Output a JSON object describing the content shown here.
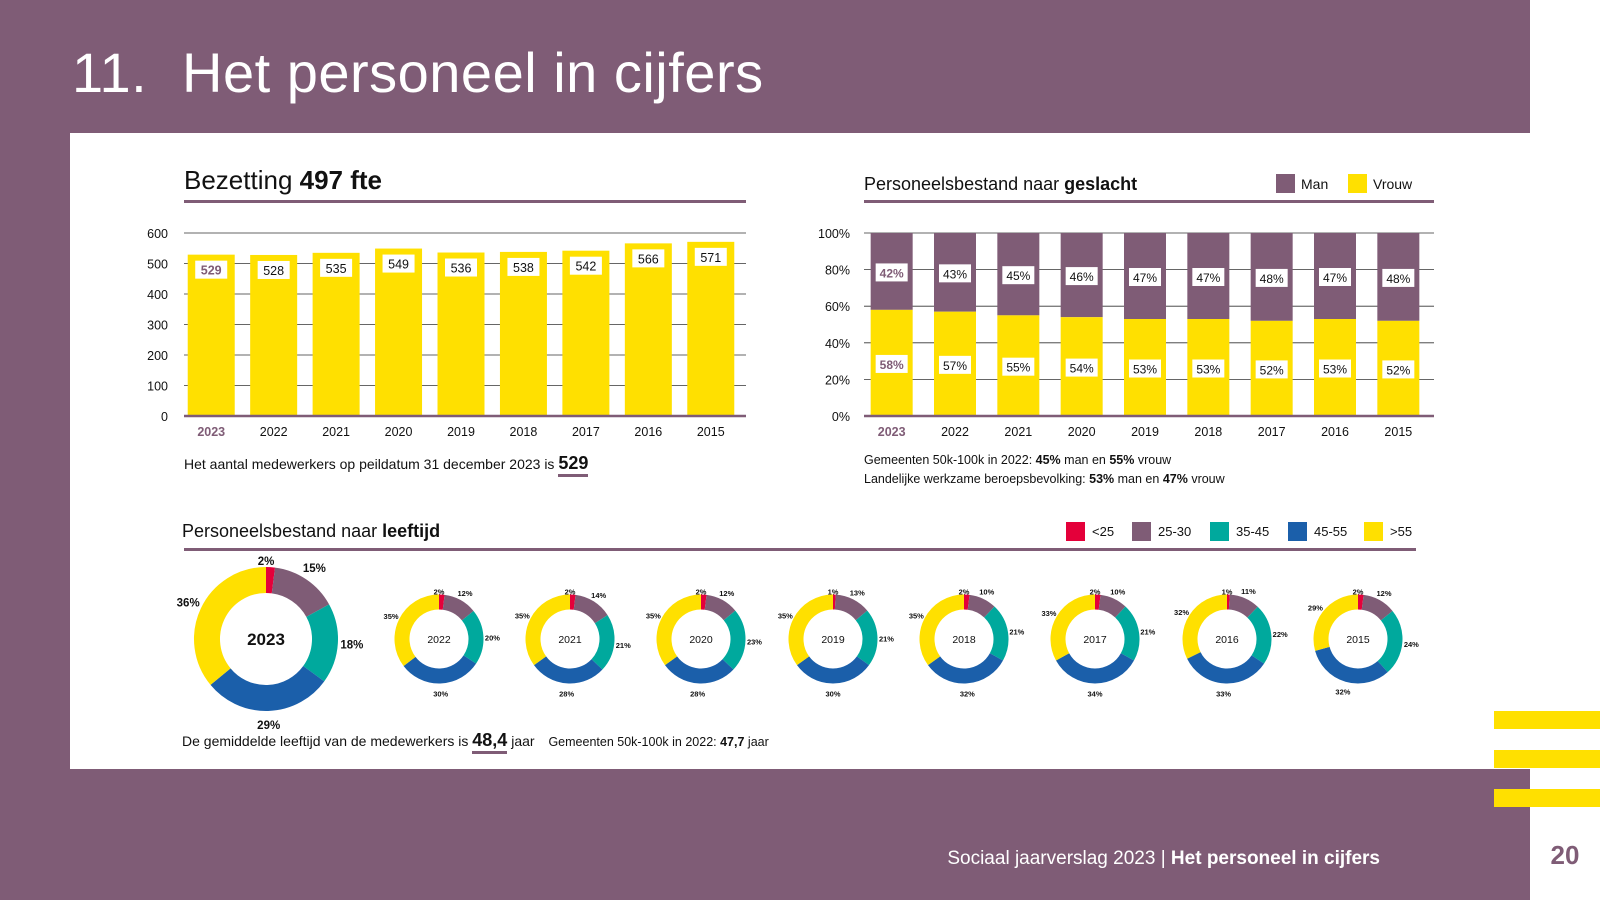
{
  "page": {
    "section_number": "11.",
    "section_title": "Het personeel in cijfers",
    "footer_text": "Sociaal jaarverslag 2023 | ",
    "footer_bold": "Het personeel in cijfers",
    "page_number": "20"
  },
  "colors": {
    "purple": "#7f5c76",
    "yellow": "#ffe000",
    "red": "#e4003a",
    "teal": "#00a99d",
    "blue": "#1b5faa",
    "grid": "#333333"
  },
  "notes": {
    "bezetting_prefix": "Het aantal medewerkers op peildatum 31 december 2023 is",
    "bezetting_value": "529",
    "geslacht_line1_a": "Gemeenten 50k-100k in 2022: ",
    "geslacht_line1_b": "45%",
    "geslacht_line1_c": " man en ",
    "geslacht_line1_d": "55%",
    "geslacht_line1_e": " vrouw",
    "geslacht_line2_a": "Landelijke werkzame beroepsbevolking: ",
    "geslacht_line2_b": "53%",
    "geslacht_line2_c": " man en ",
    "geslacht_line2_d": "47%",
    "geslacht_line2_e": " vrouw",
    "leeftijd_prefix": "De gemiddelde leeftijd van de medewerkers is",
    "leeftijd_value": "48,4",
    "leeftijd_suffix": "jaar",
    "leeftijd_compare_a": "Gemeenten 50k-100k in 2022: ",
    "leeftijd_compare_b": "47,7",
    "leeftijd_compare_c": " jaar"
  },
  "chart_data": [
    {
      "type": "bar",
      "title_plain": "Bezetting ",
      "title_bold": "497 fte",
      "categories": [
        "2023",
        "2022",
        "2021",
        "2020",
        "2019",
        "2018",
        "2017",
        "2016",
        "2015"
      ],
      "values": [
        529,
        528,
        535,
        549,
        536,
        538,
        542,
        566,
        571
      ],
      "ylim": [
        0,
        600
      ],
      "yticks": [
        "0",
        "100",
        "200",
        "300",
        "400",
        "500",
        "600"
      ]
    },
    {
      "type": "bar",
      "stacked": true,
      "title_plain": "Personeelsbestand naar ",
      "title_bold": "geslacht",
      "categories": [
        "2023",
        "2022",
        "2021",
        "2020",
        "2019",
        "2018",
        "2017",
        "2016",
        "2015"
      ],
      "series": [
        {
          "name": "Man",
          "values": [
            42,
            43,
            45,
            46,
            47,
            47,
            48,
            47,
            48
          ]
        },
        {
          "name": "Vrouw",
          "values": [
            58,
            57,
            55,
            54,
            53,
            53,
            52,
            53,
            52
          ]
        }
      ],
      "ylim": [
        0,
        100
      ],
      "yticks": [
        "0%",
        "20%",
        "40%",
        "60%",
        "80%",
        "100%"
      ],
      "legend": [
        "Man",
        "Vrouw"
      ]
    },
    {
      "type": "pie",
      "title_plain": "Personeelsbestand naar ",
      "title_bold": "leeftijd",
      "legend": [
        "<25",
        "25-30",
        "35-45",
        "45-55",
        ">55"
      ],
      "years": [
        {
          "year": "2023",
          "values": [
            2,
            15,
            18,
            29,
            36
          ]
        },
        {
          "year": "2022",
          "values": [
            2,
            12,
            20,
            30,
            35
          ]
        },
        {
          "year": "2021",
          "values": [
            2,
            14,
            21,
            28,
            35
          ]
        },
        {
          "year": "2020",
          "values": [
            2,
            12,
            23,
            28,
            35
          ]
        },
        {
          "year": "2019",
          "values": [
            1,
            13,
            21,
            30,
            35
          ]
        },
        {
          "year": "2018",
          "values": [
            2,
            10,
            21,
            32,
            35
          ]
        },
        {
          "year": "2017",
          "values": [
            2,
            10,
            21,
            34,
            33
          ]
        },
        {
          "year": "2016",
          "values": [
            1,
            11,
            22,
            33,
            32
          ]
        },
        {
          "year": "2015",
          "values": [
            2,
            12,
            24,
            32,
            29
          ]
        }
      ]
    }
  ]
}
